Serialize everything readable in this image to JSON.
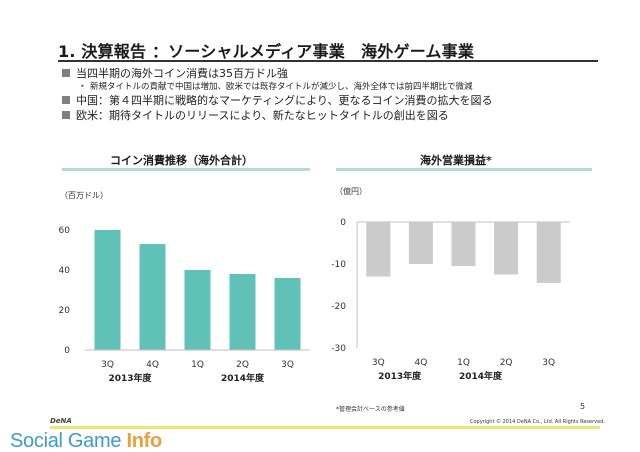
{
  "slide": {
    "title": "1. 決算報告 ：ソーシャルメディア事業　海外ゲーム事業",
    "bullets": [
      "当四半期の海外コイン消費は35百万ドル強",
      "中国：第４四半期に戦略的なマーケティングにより、更なるコイン消費の拡大を図る",
      "欧米：期待タイトルのリリースにより、新たなヒットタイトルの創出を図る"
    ],
    "sub_bullet": "新規タイトルの貢献で中国は増加、欧米では既存タイトルが減少し、海外全体では前四半期比で微減",
    "note": "*管理会計ベースの参考値",
    "page_number": "5",
    "copyright": "Copyright © 2014 DeNA Co., Ltd. All Rights Reserved.",
    "logo_text": "DeNA",
    "brand_main": "Social Game ",
    "brand_bold": "Info",
    "colors": {
      "bar_left": "#5fc1b8",
      "bar_right": "#cbcbcb",
      "rule": "#b7d9d6",
      "footer": "#ece57a",
      "brand": "#3e9ad0"
    }
  },
  "chart_data": [
    {
      "type": "bar",
      "title": "コイン消費推移（海外合計）",
      "ylabel": "（百万ドル）",
      "categories": [
        "3Q",
        "4Q",
        "1Q",
        "2Q",
        "3Q"
      ],
      "group_labels": [
        "2013年度",
        "2014年度"
      ],
      "values": [
        60,
        53,
        40,
        38,
        36
      ],
      "ylim": [
        0,
        60
      ],
      "yticks": [
        0,
        20,
        40,
        60
      ],
      "grid": false
    },
    {
      "type": "bar",
      "title": "海外営業損益*",
      "ylabel": "（億円）",
      "categories": [
        "3Q",
        "4Q",
        "1Q",
        "2Q",
        "3Q"
      ],
      "group_labels": [
        "2013年度",
        "2014年度"
      ],
      "values": [
        -13,
        -10,
        -10.5,
        -12.5,
        -14.5
      ],
      "ylim": [
        -30,
        0
      ],
      "yticks": [
        0,
        -10,
        -20,
        -30
      ],
      "grid": false
    }
  ]
}
